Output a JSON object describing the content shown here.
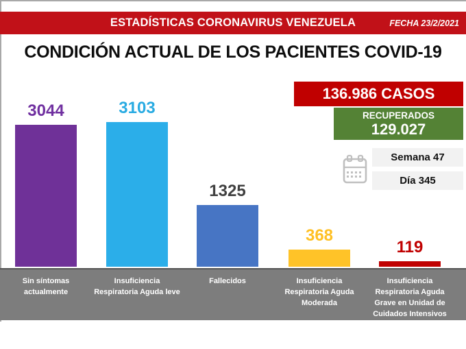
{
  "banner": {
    "title": "ESTADÍSTICAS CORONAVIRUS VENEZUELA",
    "date": "FECHA 23/2/2021"
  },
  "page_title": "CONDICIÓN ACTUAL DE LOS PACIENTES COVID-19",
  "chart_data": {
    "type": "bar",
    "title": "CONDICIÓN ACTUAL DE LOS PACIENTES COVID-19",
    "categories": [
      "Sin síntomas actualmente",
      "Insuficiencia Respiratoria Aguda leve",
      "Fallecidos",
      "Insuficiencia Respiratoria Aguda Moderada",
      "Insuficiencia Respiratoria Aguda Grave en Unidad de Cuidados Intensivos"
    ],
    "values": [
      3044,
      3103,
      1325,
      368,
      119
    ],
    "display_values": [
      "3044",
      "3103",
      "1325",
      "368",
      "119"
    ],
    "bar_colors": [
      "#6f3198",
      "#2baee9",
      "#4775c4",
      "#ffc328",
      "#c00000"
    ],
    "value_label_colors": [
      "#7030a0",
      "#29abe2",
      "#404040",
      "#ffc024",
      "#c00000"
    ],
    "ylim": [
      0,
      3103
    ],
    "grid": false,
    "legend": "none",
    "xlabel": "",
    "ylabel": ""
  },
  "footer": {
    "columns": [
      {
        "lines": [
          "Sin síntomas",
          "actualmente"
        ]
      },
      {
        "lines": [
          "Insuficiencia",
          "Respiratoria Aguda leve"
        ]
      },
      {
        "lines": [
          "Fallecidos"
        ]
      },
      {
        "lines": [
          "Insuficiencia",
          "Respiratoria Aguda",
          "Moderada"
        ]
      },
      {
        "lines": [
          "Insuficiencia",
          "Respiratoria Aguda",
          "Grave en Unidad de",
          "Cuidados Intensivos"
        ]
      }
    ]
  },
  "stats": {
    "cases_text": "136.986 CASOS",
    "recovered_label": "RECUPERADOS",
    "recovered_value": "129.027",
    "week": "Semana 47",
    "day": "Día 345"
  },
  "colors": {
    "banner_red": "#c11118",
    "cases_red": "#c00000",
    "recovered_green": "#548235",
    "footer_gray": "#7d7d7d",
    "stat_box_gray": "#f2f2f2",
    "calendar_gray": "#bfbfbf"
  }
}
